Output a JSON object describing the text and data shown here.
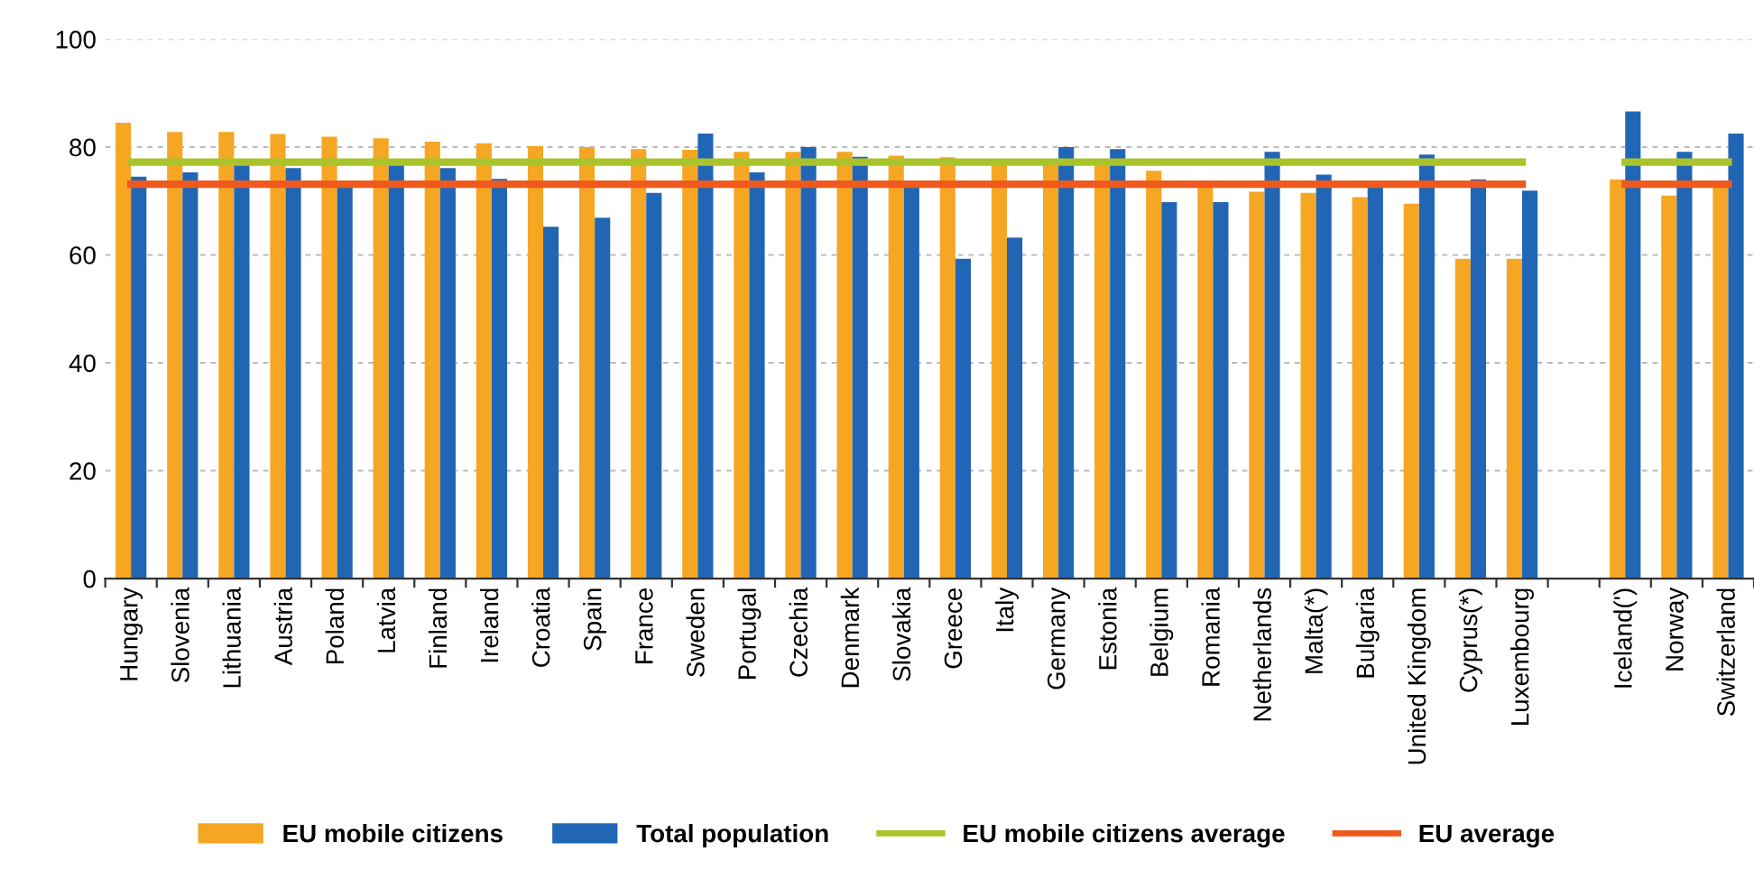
{
  "chart_data": {
    "type": "bar",
    "categories": [
      "Hungary",
      "Slovenia",
      "Lithuania",
      "Austria",
      "Poland",
      "Latvia",
      "Finland",
      "Ireland",
      "Croatia",
      "Spain",
      "France",
      "Sweden",
      "Portugal",
      "Czechia",
      "Denmark",
      "Slovakia",
      "Greece",
      "Italy",
      "Germany",
      "Estonia",
      "Belgium",
      "Romania",
      "Netherlands",
      "Malta(*)",
      "Bulgaria",
      "United Kingdom",
      "Cyprus(*)",
      "Luxembourg",
      null,
      "Iceland(')",
      "Norway",
      "Switzerland"
    ],
    "series": [
      {
        "name": "EU mobile citizens",
        "color": "#f5a623",
        "values": [
          84.5,
          82.8,
          82.8,
          82.4,
          81.9,
          81.6,
          81.0,
          80.7,
          80.2,
          80.0,
          79.6,
          79.5,
          79.1,
          79.1,
          79.1,
          78.4,
          78.1,
          76.9,
          77.0,
          77.0,
          75.6,
          73.0,
          71.7,
          71.5,
          70.7,
          69.5,
          59.3,
          59.3,
          null,
          74.0,
          71.0,
          73.0
        ]
      },
      {
        "name": "Total population",
        "color": "#2166b5",
        "values": [
          74.5,
          75.3,
          76.7,
          76.1,
          73.4,
          76.9,
          76.1,
          74.1,
          65.2,
          66.9,
          71.5,
          82.5,
          75.3,
          80.0,
          78.2,
          72.7,
          59.3,
          63.2,
          80.0,
          79.6,
          69.8,
          69.8,
          79.1,
          74.9,
          73.0,
          78.6,
          74.0,
          71.9,
          null,
          86.6,
          79.1,
          82.5
        ]
      },
      {
        "name": "EU mobile citizens average",
        "type": "line",
        "color": "#a9c42a",
        "values": [
          77.2,
          77.2,
          77.2,
          77.2,
          77.2,
          77.2,
          77.2,
          77.2,
          77.2,
          77.2,
          77.2,
          77.2,
          77.2,
          77.2,
          77.2,
          77.2,
          77.2,
          77.2,
          77.2,
          77.2,
          77.2,
          77.2,
          77.2,
          77.2,
          77.2,
          77.2,
          77.2,
          77.2,
          null,
          77.2,
          77.2,
          77.2
        ]
      },
      {
        "name": "EU average",
        "type": "line",
        "color": "#f0591e",
        "values": [
          73.1,
          73.1,
          73.1,
          73.1,
          73.1,
          73.1,
          73.1,
          73.1,
          73.1,
          73.1,
          73.1,
          73.1,
          73.1,
          73.1,
          73.1,
          73.1,
          73.1,
          73.1,
          73.1,
          73.1,
          73.1,
          73.1,
          73.1,
          73.1,
          73.1,
          73.1,
          73.1,
          73.1,
          null,
          73.1,
          73.1,
          73.1
        ]
      }
    ],
    "ylim": [
      0,
      100
    ],
    "yticks": [
      0,
      20,
      40,
      60,
      80,
      100
    ],
    "grid": "y",
    "legend": "bottom"
  }
}
